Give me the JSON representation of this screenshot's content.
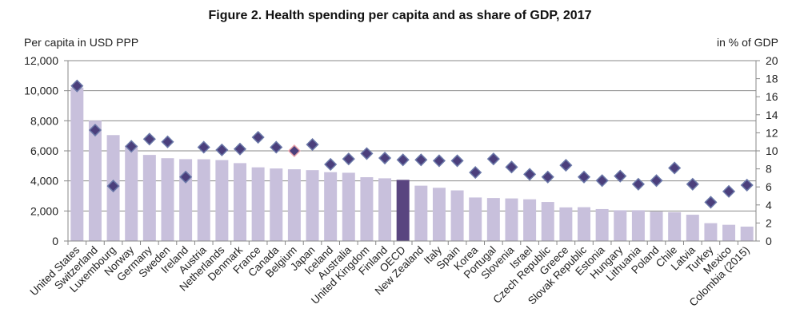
{
  "chart_data": {
    "type": "bar",
    "title": "Figure 2. Health spending per capita and as share of GDP, 2017",
    "ylabel_left": "Per capita in USD PPP",
    "ylabel_right": "in % of GDP",
    "ylim_left": [
      0,
      12000
    ],
    "yticks_left": [
      "0",
      "2,000",
      "4,000",
      "6,000",
      "8,000",
      "10,000",
      "12,000"
    ],
    "ylim_right": [
      0,
      20
    ],
    "yticks_right": [
      "0",
      "2",
      "4",
      "6",
      "8",
      "10",
      "12",
      "14",
      "16",
      "18",
      "20"
    ],
    "grid": true,
    "categories": [
      "United States",
      "Switzerland",
      "Luxembourg",
      "Norway",
      "Germany",
      "Sweden",
      "Ireland",
      "Austria",
      "Netherlands",
      "Denmark",
      "France",
      "Canada",
      "Belgium",
      "Japan",
      "Iceland",
      "Australia",
      "United Kingdom",
      "Finland",
      "OECD",
      "New Zealand",
      "Italy",
      "Spain",
      "Korea",
      "Portugal",
      "Slovenia",
      "Israel",
      "Czech Republic",
      "Greece",
      "Slovak Republic",
      "Estonia",
      "Hungary",
      "Lithuania",
      "Poland",
      "Chile",
      "Latvia",
      "Turkey",
      "Mexico",
      "Colombia (2015)"
    ],
    "series": [
      {
        "type": "bar",
        "axis": "left",
        "values": [
          10209,
          8009,
          7049,
          6351,
          5728,
          5511,
          5449,
          5440,
          5386,
          5183,
          4902,
          4826,
          4774,
          4717,
          4581,
          4543,
          4246,
          4173,
          4069,
          3683,
          3542,
          3370,
          2897,
          2861,
          2835,
          2776,
          2600,
          2238,
          2250,
          2127,
          2047,
          2050,
          1955,
          1915,
          1749,
          1188,
          1080,
          960
        ]
      },
      {
        "type": "scatter",
        "marker": "diamond",
        "axis": "right",
        "values": [
          17.2,
          12.3,
          6.1,
          10.5,
          11.3,
          11.0,
          7.1,
          10.4,
          10.1,
          10.2,
          11.5,
          10.4,
          10.0,
          10.7,
          8.5,
          9.1,
          9.7,
          9.2,
          9.0,
          9.0,
          8.9,
          8.9,
          7.6,
          9.1,
          8.2,
          7.4,
          7.1,
          8.4,
          7.1,
          6.7,
          7.2,
          6.3,
          6.7,
          8.1,
          6.3,
          4.3,
          5.5,
          6.2
        ]
      }
    ],
    "highlight": {
      "OECD": "bar",
      "Belgium": "marker"
    },
    "colors": {
      "bar": "#c8c0dc",
      "bar_highlight": "#594580",
      "marker": "#4b3f7c",
      "marker_edge": "#6a78a8",
      "marker_highlight_edge": "#e8a0a8",
      "grid": "#8a8a8a"
    }
  }
}
